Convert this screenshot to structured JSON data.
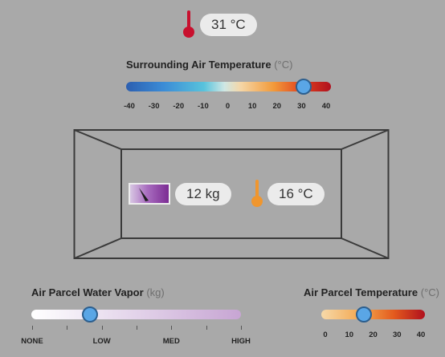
{
  "surrounding": {
    "reading": "31 °C",
    "title": "Surrounding Air Temperature",
    "unit": "(°C)",
    "value": 31,
    "min": -40,
    "max": 40,
    "ticks": [
      "-40",
      "-30",
      "-20",
      "-10",
      "0",
      "10",
      "20",
      "30",
      "40"
    ]
  },
  "box": {
    "vapor_reading": "12 kg",
    "temp_reading": "16 °C"
  },
  "vapor": {
    "title": "Air Parcel Water Vapor",
    "unit": "(kg)",
    "value_fraction": 0.24,
    "ticks": [
      "NONE",
      "LOW",
      "MED",
      "HIGH"
    ]
  },
  "parcel": {
    "title": "Air Parcel Temperature",
    "unit": "(°C)",
    "value": 16,
    "min": 0,
    "max": 40,
    "ticks": [
      "0",
      "10",
      "20",
      "30",
      "40"
    ]
  },
  "colors": {
    "hot_red": "#c8102e",
    "warm_orange": "#f0962e",
    "handle_blue": "#5aa6e6"
  }
}
